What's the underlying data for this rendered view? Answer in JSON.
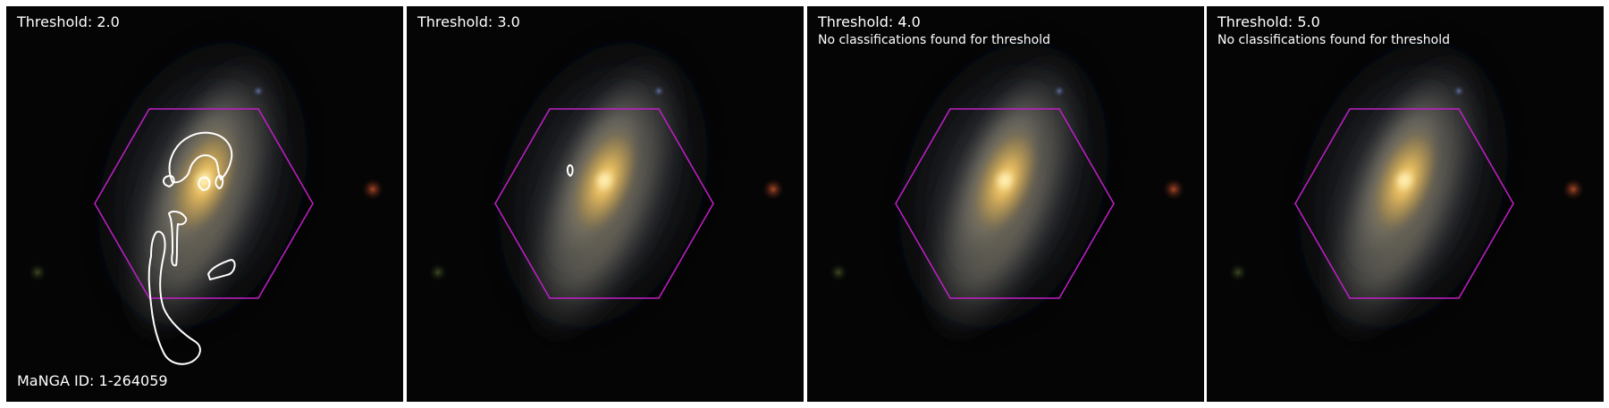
{
  "panels": [
    {
      "title": "Threshold: 2.0",
      "subtitle": "",
      "footer": "MaNGA ID: 1-264059",
      "contour_level": "2.0"
    },
    {
      "title": "Threshold: 3.0",
      "subtitle": "",
      "footer": "",
      "contour_level": "3.0"
    },
    {
      "title": "Threshold: 4.0",
      "subtitle": "No classifications found for threshold",
      "footer": "",
      "contour_level": "4.0"
    },
    {
      "title": "Threshold: 5.0",
      "subtitle": "No classifications found for threshold",
      "footer": "",
      "contour_level": "5.0"
    }
  ],
  "colors": {
    "hexagon": "#c21fc9",
    "contour": "#ffffff",
    "background": "#000000",
    "galaxy_core": "#f4c96a"
  }
}
